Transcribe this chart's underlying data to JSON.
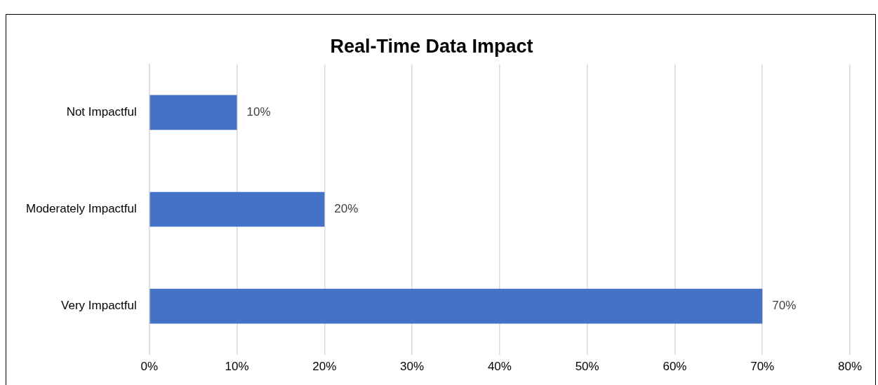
{
  "chart_data": {
    "type": "bar",
    "orientation": "horizontal",
    "title": "Real-Time Data Impact",
    "categories": [
      "Not Impactful",
      "Moderately Impactful",
      "Very Impactful"
    ],
    "values": [
      10,
      20,
      70
    ],
    "color": "#4472c4",
    "value_labels": [
      "10%",
      "20%",
      "70%"
    ],
    "xlim": [
      0,
      80
    ],
    "xticks": [
      {
        "value": 0,
        "label": "0%"
      },
      {
        "value": 10,
        "label": "10%"
      },
      {
        "value": 20,
        "label": "20%"
      },
      {
        "value": 30,
        "label": "30%"
      },
      {
        "value": 40,
        "label": "40%"
      },
      {
        "value": 50,
        "label": "50%"
      },
      {
        "value": 60,
        "label": "60%"
      },
      {
        "value": 70,
        "label": "70%"
      },
      {
        "value": 80,
        "label": "80%"
      }
    ],
    "grid": "x",
    "legend": false
  }
}
